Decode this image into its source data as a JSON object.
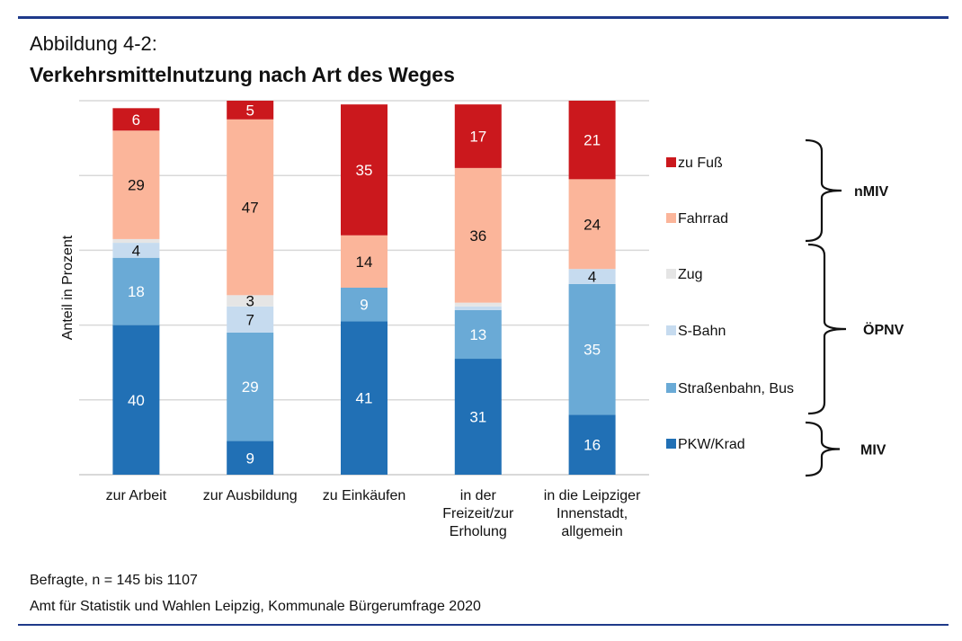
{
  "figure_label": "Abbildung 4-2:",
  "chart_data": {
    "type": "bar",
    "stacked": true,
    "title": "Verkehrsmittelnutzung nach Art des Weges",
    "xlabel": "",
    "ylabel": "Anteil in Prozent",
    "ylim": [
      0,
      100
    ],
    "grid": true,
    "categories": [
      [
        "zur Arbeit"
      ],
      [
        "zur Ausbildung"
      ],
      [
        "zu Einkäufen"
      ],
      [
        "in der",
        "Freizeit/zur",
        "Erholung"
      ],
      [
        "in die Leipziger",
        "Innenstadt,",
        "allgemein"
      ]
    ],
    "series": [
      {
        "name": "PKW/Krad",
        "color": "#2170b5",
        "label_color": "#ffffff",
        "values": [
          40,
          9,
          41,
          31,
          16
        ]
      },
      {
        "name": "Straßenbahn, Bus",
        "color": "#6aaad6",
        "label_color": "#ffffff",
        "values": [
          18,
          29,
          9,
          13,
          35
        ]
      },
      {
        "name": "S-Bahn",
        "color": "#c6dbef",
        "label_color": "#111111",
        "values": [
          4,
          7,
          0,
          1,
          4
        ]
      },
      {
        "name": "Zug",
        "color": "#e5e5e5",
        "label_color": "#111111",
        "values": [
          1,
          3,
          0,
          1,
          0
        ],
        "labels": [
          null,
          "3",
          null,
          null,
          null
        ]
      },
      {
        "name": "Fahrrad",
        "color": "#fbb59a",
        "label_color": "#111111",
        "values": [
          29,
          47,
          14,
          36,
          24
        ]
      },
      {
        "name": "zu Fuß",
        "color": "#cb181d",
        "label_color": "#ffffff",
        "values": [
          6,
          5,
          35,
          17,
          21
        ]
      }
    ],
    "legend": {
      "placement": "right",
      "order": [
        "zu Fuß",
        "Fahrrad",
        "Zug",
        "S-Bahn",
        "Straßenbahn, Bus",
        "PKW/Krad"
      ]
    },
    "annotations": [
      {
        "text": "nMIV",
        "covers": [
          "zu Fuß",
          "Fahrrad"
        ]
      },
      {
        "text": "ÖPNV",
        "covers": [
          "Zug",
          "S-Bahn",
          "Straßenbahn, Bus"
        ]
      },
      {
        "text": "MIV",
        "covers": [
          "PKW/Krad"
        ]
      }
    ]
  },
  "footnotes": {
    "sample": "Befragte, n = 145 bis 1107",
    "source": "Amt für Statistik und Wahlen Leipzig, Kommunale Bürgerumfrage 2020"
  }
}
